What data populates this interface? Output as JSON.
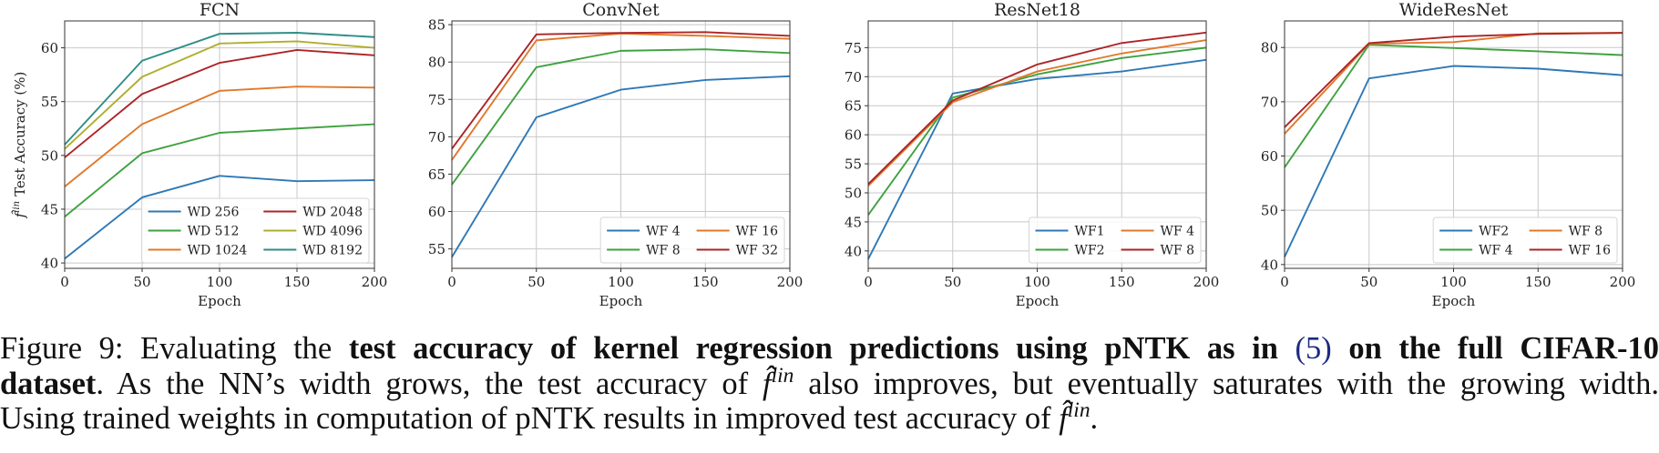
{
  "chart_data": [
    {
      "type": "line",
      "title": "FCN",
      "xlabel": "Epoch",
      "ylabel_symbol": "f̂",
      "ylabel_superscript": "lin",
      "ylabel": "Test Accuracy (%)",
      "x": [
        0,
        50,
        100,
        150,
        200
      ],
      "xlim": [
        0,
        200
      ],
      "ylim": [
        39.5,
        62.5
      ],
      "xticks": [
        0,
        50,
        100,
        150,
        200
      ],
      "yticks": [
        40,
        45,
        50,
        55,
        60
      ],
      "grid": true,
      "legend_location": "lower right",
      "legend_columns": 2,
      "series": [
        {
          "name": "WD 256",
          "color": "#2f78b6",
          "values": [
            40.4,
            46.1,
            48.1,
            47.6,
            47.7
          ]
        },
        {
          "name": "WD 512",
          "color": "#3fa23f",
          "values": [
            44.3,
            50.2,
            52.1,
            52.5,
            52.9
          ]
        },
        {
          "name": "WD 1024",
          "color": "#e0792b",
          "values": [
            47.1,
            52.9,
            56.0,
            56.4,
            56.3
          ]
        },
        {
          "name": "WD 2048",
          "color": "#ad2426",
          "values": [
            49.8,
            55.7,
            58.6,
            59.8,
            59.3
          ]
        },
        {
          "name": "WD 4096",
          "color": "#aeae30",
          "values": [
            50.6,
            57.3,
            60.4,
            60.6,
            60.0
          ]
        },
        {
          "name": "WD 8192",
          "color": "#2f8e85",
          "values": [
            51.0,
            58.8,
            61.3,
            61.4,
            61.0
          ]
        }
      ]
    },
    {
      "type": "line",
      "title": "ConvNet",
      "xlabel": "Epoch",
      "x": [
        0,
        50,
        100,
        150,
        200
      ],
      "xlim": [
        0,
        200
      ],
      "ylim": [
        52.4,
        85.5
      ],
      "xticks": [
        0,
        50,
        100,
        150,
        200
      ],
      "yticks": [
        55,
        60,
        65,
        70,
        75,
        80,
        85
      ],
      "grid": true,
      "legend_location": "lower right",
      "legend_columns": 2,
      "series": [
        {
          "name": "WF 4",
          "color": "#2f78b6",
          "values": [
            53.9,
            72.6,
            76.3,
            77.6,
            78.1
          ]
        },
        {
          "name": "WF 8",
          "color": "#3fa23f",
          "values": [
            63.6,
            79.3,
            81.5,
            81.7,
            81.2
          ]
        },
        {
          "name": "WF 16",
          "color": "#e0792b",
          "values": [
            66.9,
            82.9,
            83.8,
            83.5,
            83.1
          ]
        },
        {
          "name": "WF 32",
          "color": "#ad2426",
          "values": [
            68.4,
            83.7,
            83.9,
            84.0,
            83.5
          ]
        }
      ]
    },
    {
      "type": "line",
      "title": "ResNet18",
      "xlabel": "Epoch",
      "x": [
        0,
        50,
        100,
        150,
        200
      ],
      "xlim": [
        0,
        200
      ],
      "ylim": [
        37.0,
        79.6
      ],
      "xticks": [
        0,
        50,
        100,
        150,
        200
      ],
      "yticks": [
        40,
        45,
        50,
        55,
        60,
        65,
        70,
        75
      ],
      "grid": true,
      "legend_location": "lower right",
      "legend_columns": 2,
      "series": [
        {
          "name": "WF1",
          "color": "#2f78b6",
          "values": [
            38.6,
            67.1,
            69.6,
            70.9,
            72.9
          ]
        },
        {
          "name": "WF2",
          "color": "#3fa23f",
          "values": [
            46.2,
            66.4,
            70.4,
            73.2,
            75.0
          ]
        },
        {
          "name": "WF 4",
          "color": "#e0792b",
          "values": [
            51.2,
            65.6,
            70.9,
            74.0,
            76.3
          ]
        },
        {
          "name": "WF 8",
          "color": "#ad2426",
          "values": [
            51.5,
            65.9,
            72.1,
            75.8,
            77.6
          ]
        }
      ]
    },
    {
      "type": "line",
      "title": "WideResNet",
      "xlabel": "Epoch",
      "x": [
        0,
        50,
        100,
        150,
        200
      ],
      "xlim": [
        0,
        200
      ],
      "ylim": [
        39.3,
        84.9
      ],
      "xticks": [
        0,
        50,
        100,
        150,
        200
      ],
      "yticks": [
        40,
        50,
        60,
        70,
        80
      ],
      "grid": true,
      "legend_location": "lower right",
      "legend_columns": 2,
      "series": [
        {
          "name": "WF2",
          "color": "#2f78b6",
          "values": [
            41.4,
            74.3,
            76.6,
            76.1,
            74.9
          ]
        },
        {
          "name": "WF 4",
          "color": "#3fa23f",
          "values": [
            57.9,
            80.5,
            79.9,
            79.3,
            78.6
          ]
        },
        {
          "name": "WF 8",
          "color": "#e0792b",
          "values": [
            64.1,
            80.7,
            81.0,
            82.6,
            82.7
          ]
        },
        {
          "name": "WF 16",
          "color": "#ad2426",
          "values": [
            65.3,
            80.8,
            82.0,
            82.5,
            82.7
          ]
        }
      ]
    }
  ],
  "caption": {
    "line1": {
      "prefix": "Figure 9: Evaluating the ",
      "bold1": "test accuracy of kernel regression predictions using pNTK as in ",
      "ref": "(5)",
      "bold2": " on the full CIFAR-10"
    },
    "line2": {
      "bold": "dataset",
      "text1": ". As the NN’s width grows, the test accuracy of ",
      "symbol": "f̂",
      "sup": "lin",
      "text2": " also improves, but eventually saturates with the growing width."
    },
    "line3": {
      "text1": "Using trained weights in computation of pNTK results in improved test accuracy of ",
      "symbol": "f̂",
      "sup": "lin",
      "text2": "."
    }
  }
}
